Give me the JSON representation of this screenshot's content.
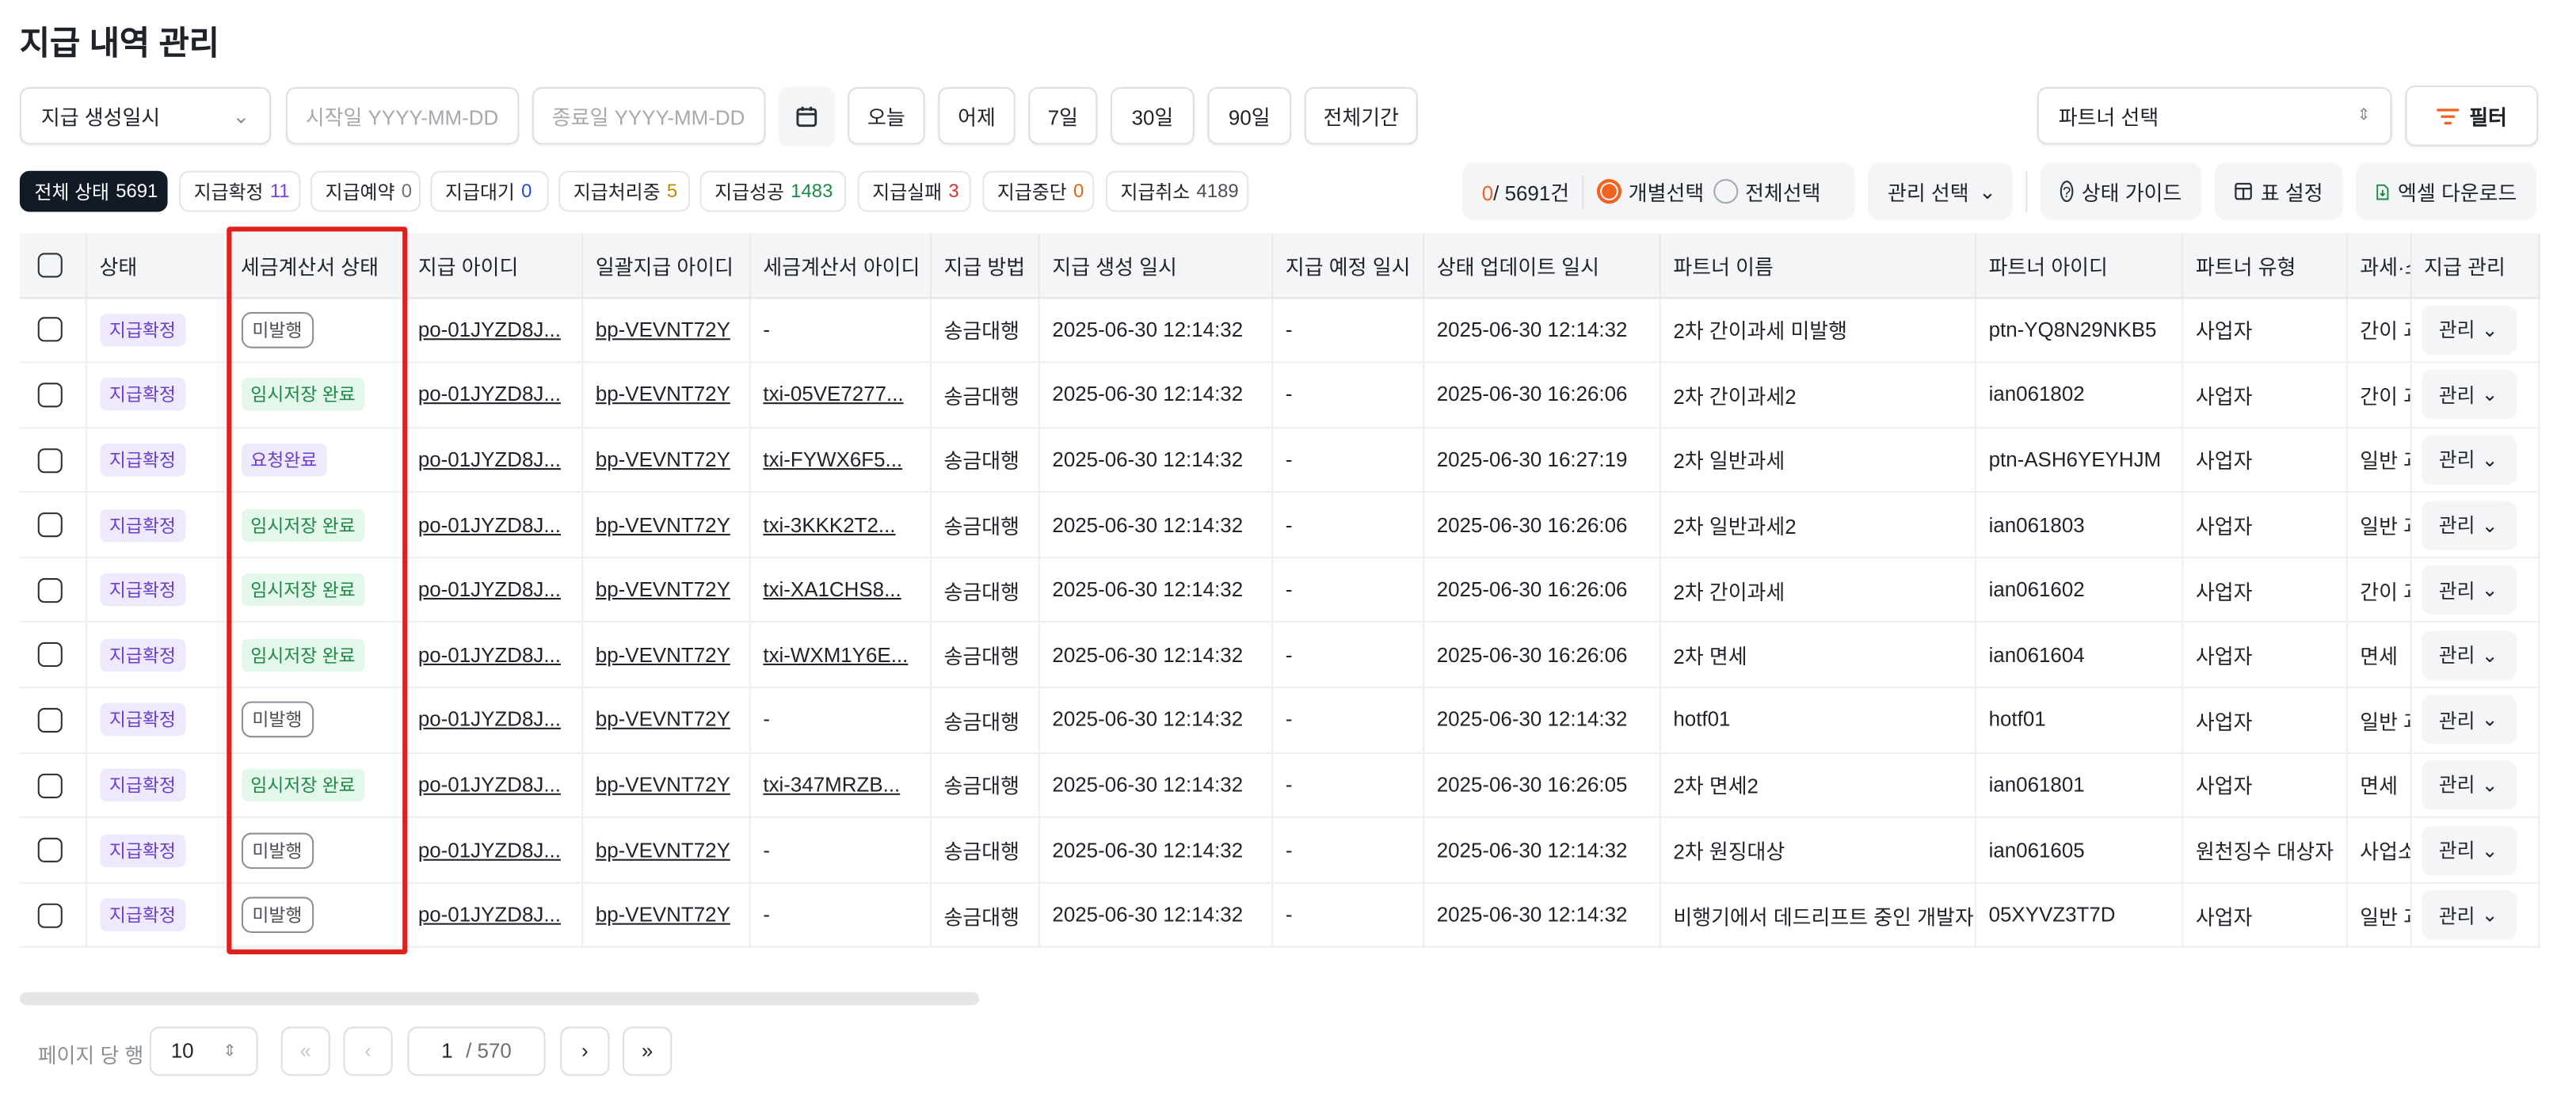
{
  "title": "지급 내역 관리",
  "filters": {
    "date_type": "지급 생성일시",
    "start_placeholder": "시작일  YYYY-MM-DD",
    "end_placeholder": "종료일  YYYY-MM-DD",
    "quick": [
      "오늘",
      "어제",
      "7일",
      "30일",
      "90일",
      "전체기간"
    ],
    "partner_select": "파트너 선택",
    "filter_label": "필터"
  },
  "status_chips": [
    {
      "label": "전체 상태",
      "count": "5691",
      "color": "#ffffff"
    },
    {
      "label": "지급확정",
      "count": "11",
      "color": "#7b3fe4"
    },
    {
      "label": "지급예약",
      "count": "0",
      "color": "#6b7075"
    },
    {
      "label": "지급대기",
      "count": "0",
      "color": "#1f4fd1"
    },
    {
      "label": "지급처리중",
      "count": "5",
      "color": "#c08a00"
    },
    {
      "label": "지급성공",
      "count": "1483",
      "color": "#1c8a45"
    },
    {
      "label": "지급실패",
      "count": "3",
      "color": "#d9342b"
    },
    {
      "label": "지급중단",
      "count": "0",
      "color": "#e5640f"
    },
    {
      "label": "지급취소",
      "count": "4189",
      "color": "#4a4f55"
    }
  ],
  "toolbar": {
    "selected": "0",
    "total": "/ 5691건",
    "individual": "개별선택",
    "all": "전체선택",
    "manage_select": "관리 선택",
    "status_guide": "상태 가이드",
    "table_settings": "표 설정",
    "excel_download": "엑셀 다운로드"
  },
  "columns": [
    "상태",
    "세금계산서 상태",
    "지급 아이디",
    "일괄지급 아이디",
    "세금계산서 아이디",
    "지급 방법",
    "지급 생성 일시",
    "지급 예정 일시",
    "상태 업데이트 일시",
    "파트너 이름",
    "파트너 아이디",
    "파트너 유형",
    "과세·소",
    "지급 관리"
  ],
  "rows": [
    {
      "status": "지급확정",
      "tax_status": "미발행",
      "payout_id": "po-01JYZD8J...",
      "bulk_id": "bp-VEVNT72Y",
      "invoice_id": "-",
      "method": "송금대행",
      "created": "2025-06-30 12:14:32",
      "scheduled": "-",
      "updated": "2025-06-30 12:14:32",
      "partner_name": "2차 간이과세 미발행",
      "partner_id": "ptn-YQ8N29NKB5",
      "partner_type": "사업자",
      "tax_type": "간이 과",
      "manage": "관리"
    },
    {
      "status": "지급확정",
      "tax_status": "임시저장 완료",
      "payout_id": "po-01JYZD8J...",
      "bulk_id": "bp-VEVNT72Y",
      "invoice_id": "txi-05VE7277...",
      "method": "송금대행",
      "created": "2025-06-30 12:14:32",
      "scheduled": "-",
      "updated": "2025-06-30 16:26:06",
      "partner_name": "2차 간이과세2",
      "partner_id": "ian061802",
      "partner_type": "사업자",
      "tax_type": "간이 과",
      "manage": "관리"
    },
    {
      "status": "지급확정",
      "tax_status": "요청완료",
      "payout_id": "po-01JYZD8J...",
      "bulk_id": "bp-VEVNT72Y",
      "invoice_id": "txi-FYWX6F5...",
      "method": "송금대행",
      "created": "2025-06-30 12:14:32",
      "scheduled": "-",
      "updated": "2025-06-30 16:27:19",
      "partner_name": "2차 일반과세",
      "partner_id": "ptn-ASH6YEYHJM",
      "partner_type": "사업자",
      "tax_type": "일반 과",
      "manage": "관리"
    },
    {
      "status": "지급확정",
      "tax_status": "임시저장 완료",
      "payout_id": "po-01JYZD8J...",
      "bulk_id": "bp-VEVNT72Y",
      "invoice_id": "txi-3KKK2T2...",
      "method": "송금대행",
      "created": "2025-06-30 12:14:32",
      "scheduled": "-",
      "updated": "2025-06-30 16:26:06",
      "partner_name": "2차 일반과세2",
      "partner_id": "ian061803",
      "partner_type": "사업자",
      "tax_type": "일반 과",
      "manage": "관리"
    },
    {
      "status": "지급확정",
      "tax_status": "임시저장 완료",
      "payout_id": "po-01JYZD8J...",
      "bulk_id": "bp-VEVNT72Y",
      "invoice_id": "txi-XA1CHS8...",
      "method": "송금대행",
      "created": "2025-06-30 12:14:32",
      "scheduled": "-",
      "updated": "2025-06-30 16:26:06",
      "partner_name": "2차 간이과세",
      "partner_id": "ian061602",
      "partner_type": "사업자",
      "tax_type": "간이 과",
      "manage": "관리"
    },
    {
      "status": "지급확정",
      "tax_status": "임시저장 완료",
      "payout_id": "po-01JYZD8J...",
      "bulk_id": "bp-VEVNT72Y",
      "invoice_id": "txi-WXM1Y6E...",
      "method": "송금대행",
      "created": "2025-06-30 12:14:32",
      "scheduled": "-",
      "updated": "2025-06-30 16:26:06",
      "partner_name": "2차 면세",
      "partner_id": "ian061604",
      "partner_type": "사업자",
      "tax_type": "면세",
      "manage": "관리"
    },
    {
      "status": "지급확정",
      "tax_status": "미발행",
      "payout_id": "po-01JYZD8J...",
      "bulk_id": "bp-VEVNT72Y",
      "invoice_id": "-",
      "method": "송금대행",
      "created": "2025-06-30 12:14:32",
      "scheduled": "-",
      "updated": "2025-06-30 12:14:32",
      "partner_name": "hotf01",
      "partner_id": "hotf01",
      "partner_type": "사업자",
      "tax_type": "일반 과",
      "manage": "관리"
    },
    {
      "status": "지급확정",
      "tax_status": "임시저장 완료",
      "payout_id": "po-01JYZD8J...",
      "bulk_id": "bp-VEVNT72Y",
      "invoice_id": "txi-347MRZB...",
      "method": "송금대행",
      "created": "2025-06-30 12:14:32",
      "scheduled": "-",
      "updated": "2025-06-30 16:26:05",
      "partner_name": "2차 면세2",
      "partner_id": "ian061801",
      "partner_type": "사업자",
      "tax_type": "면세",
      "manage": "관리"
    },
    {
      "status": "지급확정",
      "tax_status": "미발행",
      "payout_id": "po-01JYZD8J...",
      "bulk_id": "bp-VEVNT72Y",
      "invoice_id": "-",
      "method": "송금대행",
      "created": "2025-06-30 12:14:32",
      "scheduled": "-",
      "updated": "2025-06-30 12:14:32",
      "partner_name": "2차 원징대상",
      "partner_id": "ian061605",
      "partner_type": "원천징수 대상자",
      "tax_type": "사업소",
      "manage": "관리"
    },
    {
      "status": "지급확정",
      "tax_status": "미발행",
      "payout_id": "po-01JYZD8J...",
      "bulk_id": "bp-VEVNT72Y",
      "invoice_id": "-",
      "method": "송금대행",
      "created": "2025-06-30 12:14:32",
      "scheduled": "-",
      "updated": "2025-06-30 12:14:32",
      "partner_name": "비행기에서 데드리프트 중인 개발자",
      "partner_id": "05XYVZ3T7D",
      "partner_type": "사업자",
      "tax_type": "일반 과",
      "manage": "관리"
    }
  ],
  "pagination": {
    "rows_label": "페이지 당 행",
    "rows_per_page": "10",
    "current_page": "1",
    "total_pages": "/ 570"
  },
  "colors": {
    "accent": "#f26322",
    "highlight": "#e0201a"
  }
}
